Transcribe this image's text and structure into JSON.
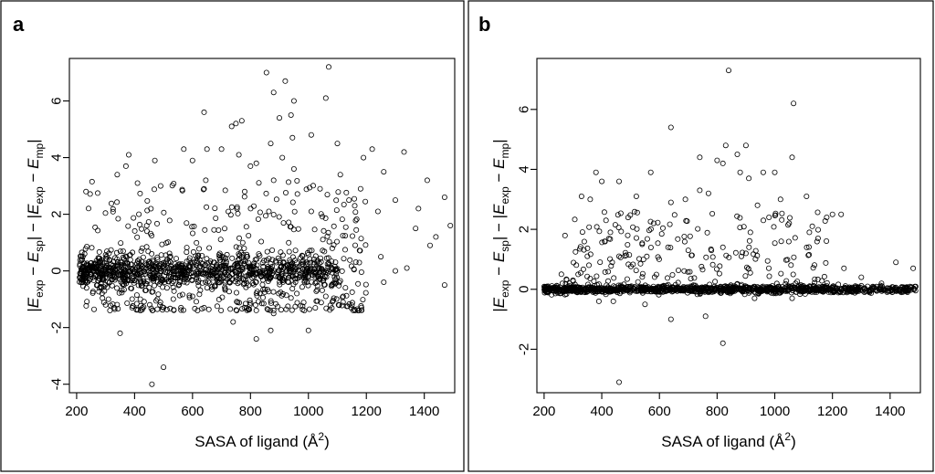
{
  "chart_data": [
    {
      "type": "scatter",
      "panel_label": "a",
      "xlabel": "SASA of ligand (Å²)",
      "xlabel_main": "SASA of ligand (Å",
      "xlabel_sup": "2",
      "xlabel_close": ")",
      "ylabel": "|E_exp − E_sp| − |E_exp − E_mp|",
      "ylabel_parts": {
        "bar": "|",
        "E": "E",
        "exp": "exp",
        "minus": " − ",
        "sp": "sp",
        "mp": "mp",
        "middle": "| − |"
      },
      "xlim": [
        175,
        1505
      ],
      "ylim": [
        -4.3,
        7.5
      ],
      "xticks": [
        200,
        400,
        600,
        800,
        1000,
        1200,
        1400
      ],
      "xtick_labels": [
        "200",
        "400",
        "600",
        "800",
        "1000",
        "1200",
        "1400"
      ],
      "yticks": [
        -4,
        -2,
        0,
        2,
        4,
        6
      ],
      "ytick_labels": [
        "-4",
        "-2",
        "0",
        "2",
        "4",
        "6"
      ],
      "points": [
        [
          1070,
          7.2
        ],
        [
          855,
          7.0
        ],
        [
          920,
          6.7
        ],
        [
          880,
          6.3
        ],
        [
          1060,
          6.1
        ],
        [
          950,
          6.0
        ],
        [
          640,
          5.6
        ],
        [
          940,
          5.5
        ],
        [
          900,
          5.4
        ],
        [
          770,
          5.3
        ],
        [
          750,
          5.2
        ],
        [
          735,
          5.1
        ],
        [
          1010,
          4.8
        ],
        [
          945,
          4.7
        ],
        [
          870,
          4.5
        ],
        [
          1100,
          4.5
        ],
        [
          570,
          4.3
        ],
        [
          650,
          4.3
        ],
        [
          700,
          4.3
        ],
        [
          1220,
          4.3
        ],
        [
          1330,
          4.2
        ],
        [
          380,
          4.1
        ],
        [
          760,
          4.1
        ],
        [
          910,
          4.0
        ],
        [
          1190,
          4.0
        ],
        [
          470,
          3.9
        ],
        [
          600,
          3.9
        ],
        [
          820,
          3.8
        ],
        [
          370,
          3.7
        ],
        [
          800,
          3.7
        ],
        [
          950,
          3.6
        ],
        [
          1110,
          3.4
        ],
        [
          340,
          3.4
        ],
        [
          1260,
          3.5
        ],
        [
          880,
          3.2
        ],
        [
          410,
          3.1
        ],
        [
          490,
          3.0
        ],
        [
          640,
          2.9
        ],
        [
          780,
          2.8
        ],
        [
          1040,
          2.9
        ],
        [
          1180,
          2.9
        ],
        [
          1410,
          3.2
        ],
        [
          1300,
          2.5
        ],
        [
          1470,
          2.6
        ],
        [
          1140,
          2.5
        ],
        [
          1010,
          2.1
        ],
        [
          1160,
          2.3
        ],
        [
          1240,
          2.1
        ],
        [
          1380,
          2.2
        ],
        [
          1370,
          1.5
        ],
        [
          1490,
          1.6
        ],
        [
          1440,
          1.2
        ],
        [
          1420,
          0.9
        ],
        [
          1470,
          -0.5
        ],
        [
          1340,
          0.1
        ],
        [
          1300,
          0.0
        ],
        [
          1250,
          0.5
        ],
        [
          1260,
          -0.4
        ],
        [
          1120,
          -0.9
        ],
        [
          1060,
          -0.9
        ],
        [
          1000,
          -2.1
        ],
        [
          880,
          -1.5
        ],
        [
          870,
          -2.1
        ],
        [
          820,
          -2.4
        ],
        [
          740,
          -1.8
        ],
        [
          640,
          -1.3
        ],
        [
          560,
          -1.3
        ],
        [
          500,
          -3.4
        ],
        [
          460,
          -4.0
        ],
        [
          350,
          -2.2
        ],
        [
          330,
          -1.3
        ],
        [
          310,
          -1.0
        ],
        [
          420,
          -1.0
        ],
        [
          500,
          -1.3
        ],
        [
          600,
          -0.9
        ],
        [
          960,
          -0.8
        ],
        [
          1080,
          -0.5
        ]
      ],
      "band": {
        "x_range": [
          210,
          1100
        ],
        "y_spread": 0.55,
        "count": 950,
        "seed": 7
      },
      "cloud": {
        "x_range": [
          230,
          1200
        ],
        "y_range": [
          -1.4,
          3.2
        ],
        "count": 420,
        "seed": 13
      }
    },
    {
      "type": "scatter",
      "panel_label": "b",
      "xlabel": "SASA of ligand (Å²)",
      "xlabel_main": "SASA of ligand (Å",
      "xlabel_sup": "2",
      "xlabel_close": ")",
      "ylabel": "|E_exp − E_sp| − |E_exp − E_mp|",
      "ylabel_parts": {
        "bar": "|",
        "E": "E",
        "exp": "exp",
        "minus": " − ",
        "sp": "sp",
        "mp": "mp",
        "middle": "| − |"
      },
      "xlim": [
        175,
        1505
      ],
      "ylim": [
        -3.45,
        7.7
      ],
      "xticks": [
        200,
        400,
        600,
        800,
        1000,
        1200,
        1400
      ],
      "xtick_labels": [
        "200",
        "400",
        "600",
        "800",
        "1000",
        "1200",
        "1400"
      ],
      "yticks": [
        -2,
        0,
        2,
        4,
        6
      ],
      "ytick_labels": [
        "-2",
        "0",
        "2",
        "4",
        "6"
      ],
      "points": [
        [
          840,
          7.3
        ],
        [
          1065,
          6.2
        ],
        [
          640,
          5.4
        ],
        [
          830,
          4.8
        ],
        [
          900,
          4.8
        ],
        [
          870,
          4.5
        ],
        [
          1060,
          4.4
        ],
        [
          740,
          4.4
        ],
        [
          800,
          4.3
        ],
        [
          820,
          4.2
        ],
        [
          380,
          3.9
        ],
        [
          570,
          3.9
        ],
        [
          400,
          3.6
        ],
        [
          880,
          3.9
        ],
        [
          460,
          3.6
        ],
        [
          910,
          3.7
        ],
        [
          960,
          3.9
        ],
        [
          1000,
          3.9
        ],
        [
          330,
          3.1
        ],
        [
          360,
          3.0
        ],
        [
          520,
          3.1
        ],
        [
          740,
          3.3
        ],
        [
          770,
          3.2
        ],
        [
          690,
          3.0
        ],
        [
          640,
          2.9
        ],
        [
          1020,
          3.0
        ],
        [
          1110,
          3.1
        ],
        [
          940,
          2.8
        ],
        [
          1230,
          2.5
        ],
        [
          1180,
          2.4
        ],
        [
          1200,
          2.5
        ],
        [
          980,
          2.4
        ],
        [
          1050,
          2.2
        ],
        [
          1130,
          2.1
        ],
        [
          1120,
          1.9
        ],
        [
          1150,
          1.7
        ],
        [
          580,
          2.2
        ],
        [
          410,
          1.6
        ],
        [
          430,
          1.9
        ],
        [
          490,
          1.8
        ],
        [
          540,
          1.5
        ],
        [
          630,
          1.4
        ],
        [
          700,
          1.3
        ],
        [
          820,
          1.4
        ],
        [
          780,
          1.3
        ],
        [
          900,
          1.2
        ],
        [
          1240,
          0.7
        ],
        [
          1300,
          0.4
        ],
        [
          1420,
          0.9
        ],
        [
          1480,
          0.7
        ],
        [
          1370,
          0.2
        ],
        [
          460,
          1.1
        ],
        [
          350,
          1.1
        ],
        [
          260,
          0.5
        ],
        [
          300,
          0.3
        ],
        [
          460,
          -3.1
        ],
        [
          820,
          -1.8
        ],
        [
          760,
          -0.9
        ],
        [
          640,
          -1.0
        ],
        [
          550,
          -0.5
        ],
        [
          440,
          -0.4
        ],
        [
          390,
          -0.4
        ],
        [
          930,
          -0.3
        ],
        [
          1060,
          -0.3
        ]
      ],
      "band": {
        "x_range": [
          200,
          1490
        ],
        "y_spread": 0.12,
        "count": 1100,
        "seed": 21
      },
      "cloud": {
        "x_range": [
          260,
          1200
        ],
        "y_range": [
          0.0,
          2.6
        ],
        "count": 230,
        "seed": 37
      }
    }
  ]
}
